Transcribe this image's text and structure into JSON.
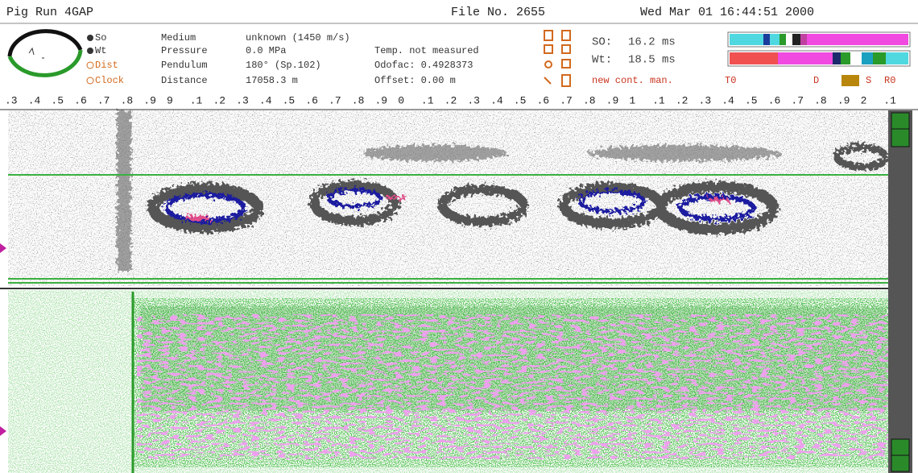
{
  "header": {
    "title": "Pig Run 4GAP",
    "file": "File No. 2655",
    "datetime": "Wed Mar 01 16:44:51 2000"
  },
  "options": [
    "So",
    "Wt",
    "Dist",
    "Clock"
  ],
  "fields": [
    {
      "label": "Medium",
      "value": "unknown (1450 m/s)"
    },
    {
      "label": "Pressure",
      "value": "0.0 MPa"
    },
    {
      "label": "Pendulum",
      "value": "180° (Sp.102)"
    },
    {
      "label": "Distance",
      "value": "17058.3 m"
    }
  ],
  "status": [
    "Temp. not measured",
    "Odofac: 0.4928373",
    "Offset:    0.00 m"
  ],
  "readings": [
    {
      "label": "SO:",
      "value": "16.2 ms"
    },
    {
      "label": "Wt:",
      "value": "18.5 ms"
    }
  ],
  "toolbar": [
    "new cont. man.",
    "T0",
    "D",
    "S",
    "R0"
  ],
  "ruler": [
    ".3",
    ".4",
    ".5",
    ".6",
    ".7",
    ".8",
    ".9",
    "9",
    ".1",
    ".2",
    ".3",
    ".4",
    ".5",
    ".6",
    ".7",
    ".8",
    ".9",
    "0",
    ".1",
    ".2",
    ".3",
    ".4",
    ".5",
    ".6",
    ".7",
    ".8",
    ".9",
    "1",
    ".1",
    ".2",
    ".3",
    ".4",
    ".5",
    ".6",
    ".7",
    ".8",
    ".9",
    "2",
    ".1"
  ]
}
